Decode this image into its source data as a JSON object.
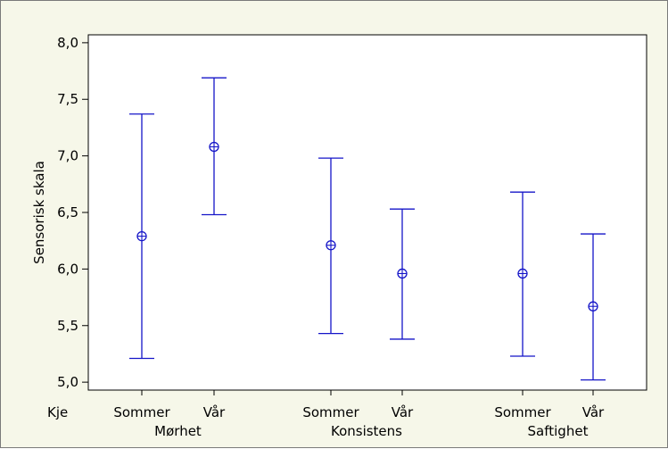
{
  "chart_data": {
    "type": "errorbar",
    "title": "",
    "ylabel": "Sensorisk skala",
    "row_header": "Kje",
    "ylim": [
      4.93,
      8.07
    ],
    "yticks": [
      "5,0",
      "5,5",
      "6,0",
      "6,5",
      "7,0",
      "7,5",
      "8,0"
    ],
    "ytick_values": [
      5.0,
      5.5,
      6.0,
      6.5,
      7.0,
      7.5,
      8.0
    ],
    "groups": [
      "Mørhet",
      "Konsistens",
      "Saftighet"
    ],
    "categories": [
      "Sommer",
      "Vår",
      "Sommer",
      "Vår",
      "Sommer",
      "Vår"
    ],
    "points": [
      {
        "group": "Mørhet",
        "category": "Sommer",
        "mean": 6.29,
        "lower": 5.21,
        "upper": 7.37
      },
      {
        "group": "Mørhet",
        "category": "Vår",
        "mean": 7.08,
        "lower": 6.48,
        "upper": 7.69
      },
      {
        "group": "Konsistens",
        "category": "Sommer",
        "mean": 6.21,
        "lower": 5.43,
        "upper": 6.98
      },
      {
        "group": "Konsistens",
        "category": "Vår",
        "mean": 5.96,
        "lower": 5.38,
        "upper": 6.53
      },
      {
        "group": "Saftighet",
        "category": "Sommer",
        "mean": 5.96,
        "lower": 5.23,
        "upper": 6.68
      },
      {
        "group": "Saftighet",
        "category": "Vår",
        "mean": 5.67,
        "lower": 5.02,
        "upper": 6.31
      }
    ],
    "grid": false,
    "colors": {
      "figure_background": "#f6f7e9",
      "plot_background": "#ffffff",
      "series": "#1515c8",
      "axis": "#000000"
    }
  }
}
